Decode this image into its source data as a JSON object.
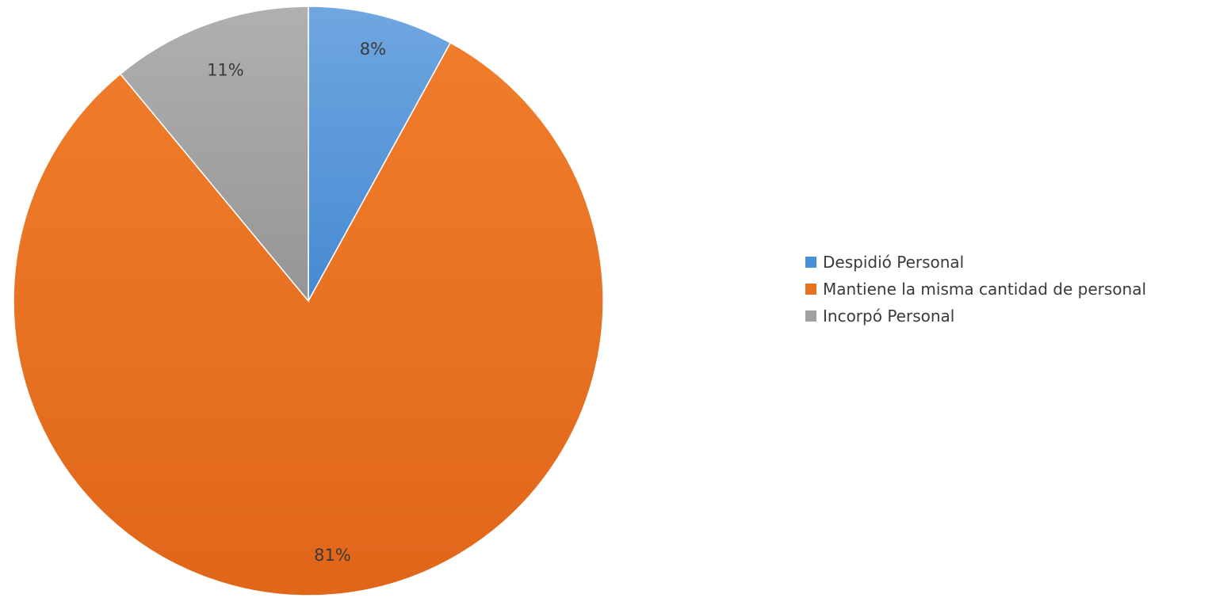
{
  "chart_data": {
    "type": "pie",
    "categories": [
      "Despidió Personal",
      "Mantiene la misma cantidad de personal",
      "Incorpó Personal"
    ],
    "values": [
      8,
      81,
      11
    ],
    "labels": [
      "8%",
      "81%",
      "11%"
    ],
    "colors": [
      "#4a90d9",
      "#e8731e",
      "#a0a0a0"
    ],
    "start_angle": "top",
    "direction": "clockwise",
    "legend_position": "right"
  }
}
